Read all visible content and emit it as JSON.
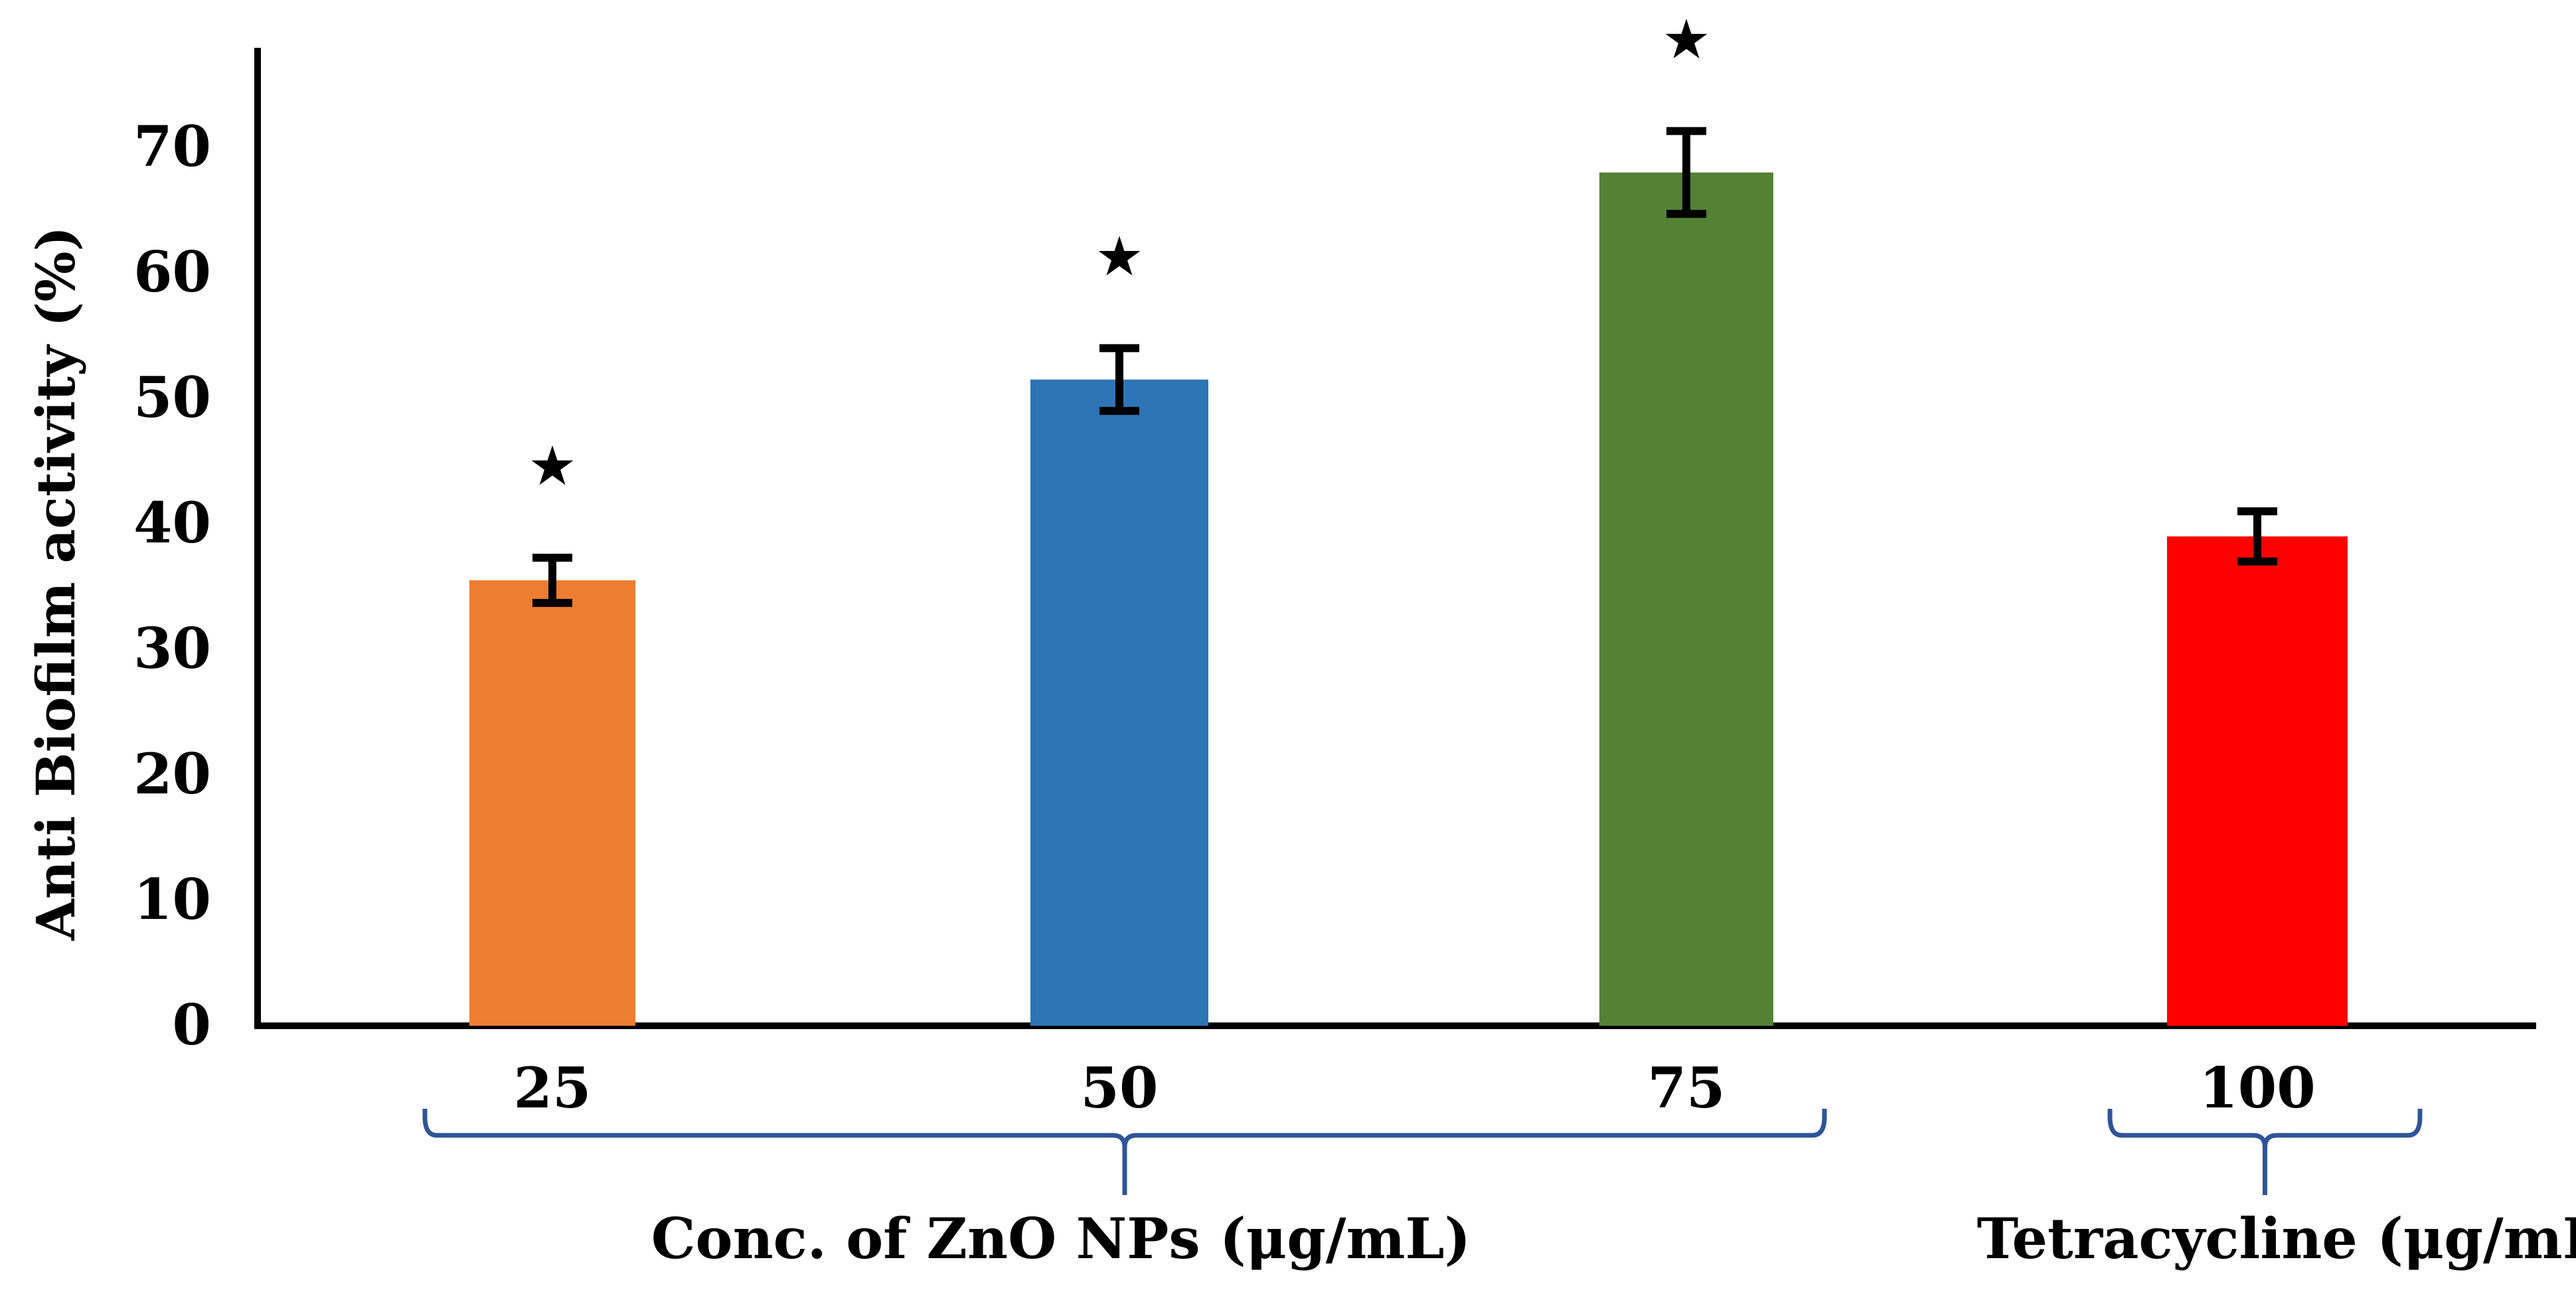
{
  "chart_data": {
    "type": "bar",
    "categories": [
      "25",
      "50",
      "75",
      "100"
    ],
    "values": [
      35.5,
      51.5,
      68,
      39
    ],
    "errors": [
      1.8,
      2.5,
      3.3,
      2.0
    ],
    "significance": [
      "★",
      "★",
      "★",
      ""
    ],
    "colors": [
      "#ED7D31",
      "#2E75B6",
      "#548235",
      "#FF0000"
    ],
    "ylabel": "Anti Biofilm activity (%)",
    "xlabel": "",
    "ylim": [
      0,
      78
    ],
    "yticks": [
      0,
      10,
      20,
      30,
      40,
      50,
      60,
      70
    ],
    "grid": false,
    "legend": "none",
    "groups": [
      {
        "label": "Conc. of ZnO NPs (μg/mL)",
        "members": [
          "25",
          "50",
          "75"
        ]
      },
      {
        "label": "Tetracycline (μg/mL)",
        "members": [
          "100"
        ]
      }
    ],
    "bracket_color": "#2F5597"
  }
}
